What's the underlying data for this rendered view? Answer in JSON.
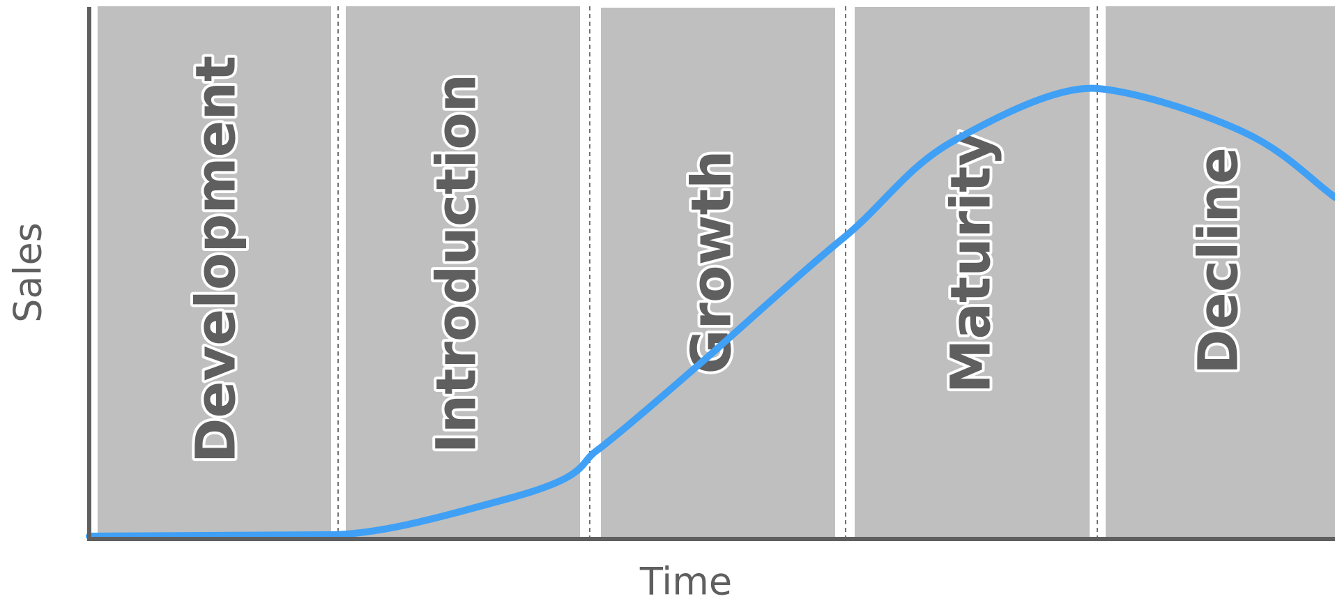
{
  "axes": {
    "y_label": "Sales",
    "x_label": "Time"
  },
  "stages": [
    {
      "label": "Development"
    },
    {
      "label": "Introduction"
    },
    {
      "label": "Growth"
    },
    {
      "label": "Maturity"
    },
    {
      "label": "Decline"
    }
  ]
}
